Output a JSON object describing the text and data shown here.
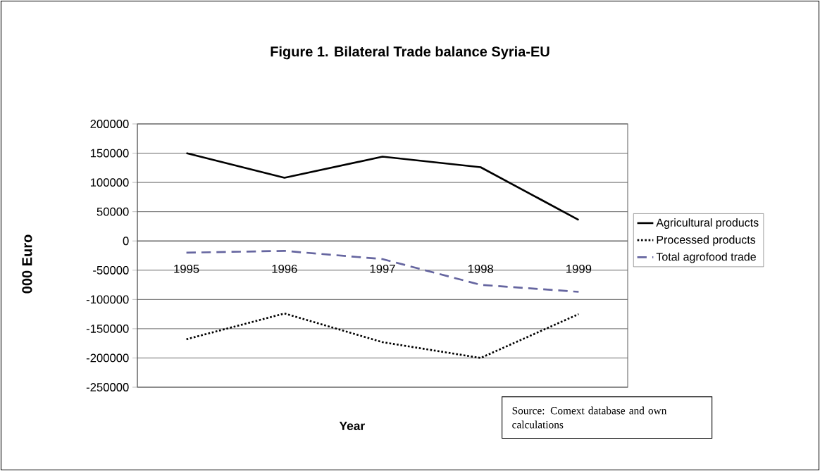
{
  "chart_data": {
    "type": "line",
    "title": "Figure 1. Bilateral Trade balance Syria-EU",
    "xlabel": "Year",
    "ylabel": "000 Euro",
    "categories": [
      "1995",
      "1996",
      "1997",
      "1998",
      "1999"
    ],
    "series": [
      {
        "name": "Agricultural products",
        "color": "#000000",
        "line_style": "solid",
        "values": [
          150000,
          108000,
          144000,
          126000,
          36000
        ]
      },
      {
        "name": "Processed products",
        "color": "#000000",
        "line_style": "dotted",
        "values": [
          -168000,
          -124000,
          -173000,
          -200000,
          -125000
        ]
      },
      {
        "name": "Total agrofood trade",
        "color": "#6666a0",
        "line_style": "dashed",
        "values": [
          -20000,
          -17000,
          -31000,
          -75000,
          -87000
        ]
      }
    ],
    "ylim": [
      -250000,
      200000
    ],
    "yticks": [
      -250000,
      -200000,
      -150000,
      -100000,
      -50000,
      0,
      50000,
      100000,
      150000,
      200000
    ],
    "grid": "y",
    "legend": "right",
    "marker": "none",
    "annotations": [
      "Source: Comext database and own calculations"
    ]
  }
}
